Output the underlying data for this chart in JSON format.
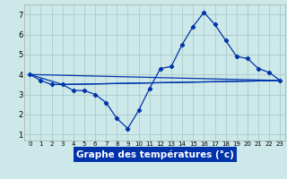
{
  "background_color": "#cce8e8",
  "grid_color": "#aacccc",
  "line_color": "#0033aa",
  "xlabel": "Graphe des températures (°c)",
  "xlabel_fontsize": 7.5,
  "xlabel_bg": "#0033aa",
  "ytick_vals": [
    1,
    2,
    3,
    4,
    5,
    6,
    7
  ],
  "xtick_vals": [
    0,
    1,
    2,
    3,
    4,
    5,
    6,
    7,
    8,
    9,
    10,
    11,
    12,
    13,
    14,
    15,
    16,
    17,
    18,
    19,
    20,
    21,
    22,
    23
  ],
  "xlim": [
    -0.5,
    23.5
  ],
  "ylim": [
    0.7,
    7.5
  ],
  "curve_x": [
    0,
    1,
    2,
    3,
    4,
    5,
    6,
    7,
    8,
    9,
    10,
    11,
    12,
    13,
    14,
    15,
    16,
    17,
    18,
    19,
    20,
    21,
    22,
    23
  ],
  "curve_y": [
    4.0,
    3.7,
    3.5,
    3.5,
    3.2,
    3.2,
    3.0,
    2.6,
    1.8,
    1.3,
    2.2,
    3.3,
    4.3,
    4.4,
    5.5,
    6.4,
    7.1,
    6.5,
    5.7,
    4.9,
    4.8,
    4.3,
    4.1,
    3.7
  ],
  "line1_x": [
    0,
    23
  ],
  "line1_y": [
    4.0,
    3.7
  ],
  "line2_x": [
    0,
    3,
    23
  ],
  "line2_y": [
    4.0,
    3.5,
    3.7
  ],
  "line3_x": [
    3,
    23
  ],
  "line3_y": [
    3.5,
    3.7
  ],
  "marker": "D",
  "marker_size": 2.2,
  "line_width": 0.9,
  "tick_fontsize_x": 5.0,
  "tick_fontsize_y": 6.0
}
